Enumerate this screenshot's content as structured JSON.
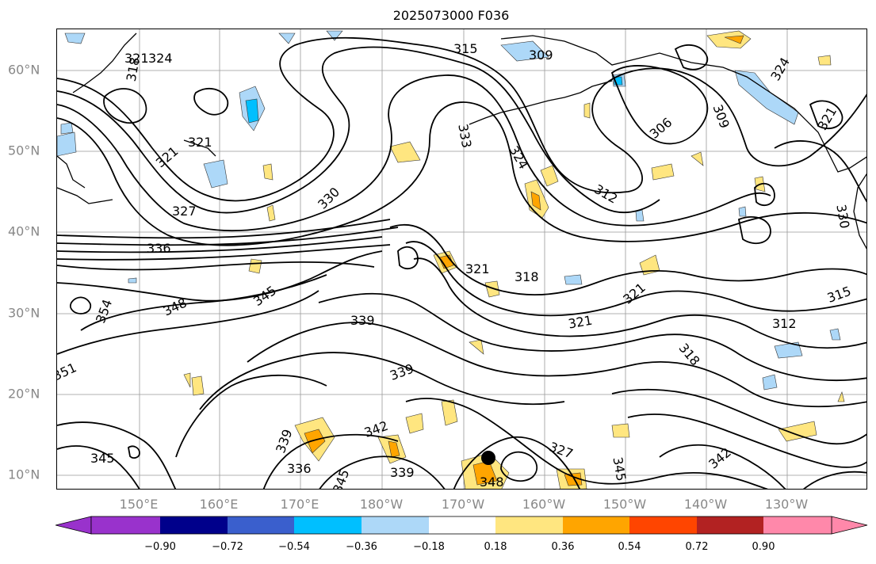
{
  "title": "2025073000 F036",
  "lat_labels": [
    "60°N",
    "50°N",
    "40°N",
    "30°N",
    "20°N",
    "10°N"
  ],
  "lon_labels": [
    "150°E",
    "160°E",
    "170°E",
    "180°W",
    "170°W",
    "160°W",
    "150°W",
    "140°W",
    "130°W"
  ],
  "colorbar": {
    "ticks": [
      "−0.90",
      "−0.72",
      "−0.54",
      "−0.36",
      "−0.18",
      "0.18",
      "0.36",
      "0.54",
      "0.72",
      "0.90"
    ],
    "colors": [
      "#9932cc",
      "#00008b",
      "#3a5fcd",
      "#00bfff",
      "#add8f8",
      "#ffffff",
      "#ffe680",
      "#ffa500",
      "#ff4500",
      "#b22222",
      "#ff88aa"
    ]
  },
  "contour_labels": [
    {
      "text": "321",
      "dx": 0,
      "dy": 0
    },
    {
      "text": "324"
    },
    {
      "text": "318"
    },
    {
      "text": "315"
    },
    {
      "text": "309"
    },
    {
      "text": "333"
    },
    {
      "text": "324"
    },
    {
      "text": "306"
    },
    {
      "text": "309"
    },
    {
      "text": "324"
    },
    {
      "text": "321"
    },
    {
      "text": "321"
    },
    {
      "text": "321"
    },
    {
      "text": "330"
    },
    {
      "text": "327"
    },
    {
      "text": "312"
    },
    {
      "text": "330"
    },
    {
      "text": "336"
    },
    {
      "text": "321"
    },
    {
      "text": "318"
    },
    {
      "text": "345"
    },
    {
      "text": "348"
    },
    {
      "text": "354"
    },
    {
      "text": "321"
    },
    {
      "text": "315"
    },
    {
      "text": "339"
    },
    {
      "text": "321"
    },
    {
      "text": "318"
    },
    {
      "text": "312"
    },
    {
      "text": "339"
    },
    {
      "text": "351"
    },
    {
      "text": "339"
    },
    {
      "text": "342"
    },
    {
      "text": "336"
    },
    {
      "text": "339"
    },
    {
      "text": "345"
    },
    {
      "text": "348"
    },
    {
      "text": "327"
    },
    {
      "text": "345"
    },
    {
      "text": "342"
    },
    {
      "text": "345"
    }
  ],
  "features": {
    "marker": "tropical-cyclone-center",
    "coastline": "black"
  }
}
